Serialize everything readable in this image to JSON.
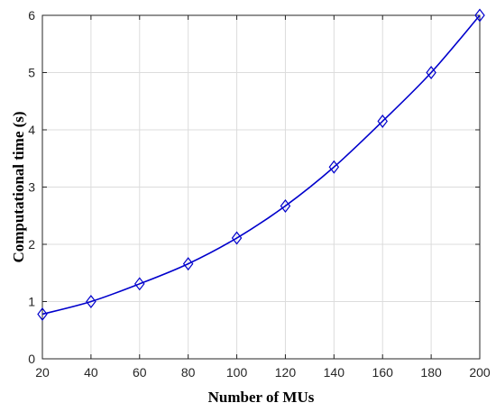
{
  "chart_data": {
    "type": "line",
    "title": "",
    "xlabel": "Number of MUs",
    "ylabel": "Computational time (s)",
    "x": [
      20,
      40,
      60,
      80,
      100,
      120,
      140,
      160,
      180,
      200
    ],
    "xlim": [
      20,
      200
    ],
    "ylim": [
      0,
      6
    ],
    "xticks": [
      20,
      40,
      60,
      80,
      100,
      120,
      140,
      160,
      180,
      200
    ],
    "yticks": [
      0,
      1,
      2,
      3,
      4,
      5,
      6
    ],
    "grid": true,
    "series": [
      {
        "values": [
          0.78,
          1.0,
          1.31,
          1.66,
          2.11,
          2.67,
          3.35,
          4.15,
          5.0,
          6.0
        ],
        "color": "#0000cc",
        "marker": "diamond"
      }
    ]
  }
}
